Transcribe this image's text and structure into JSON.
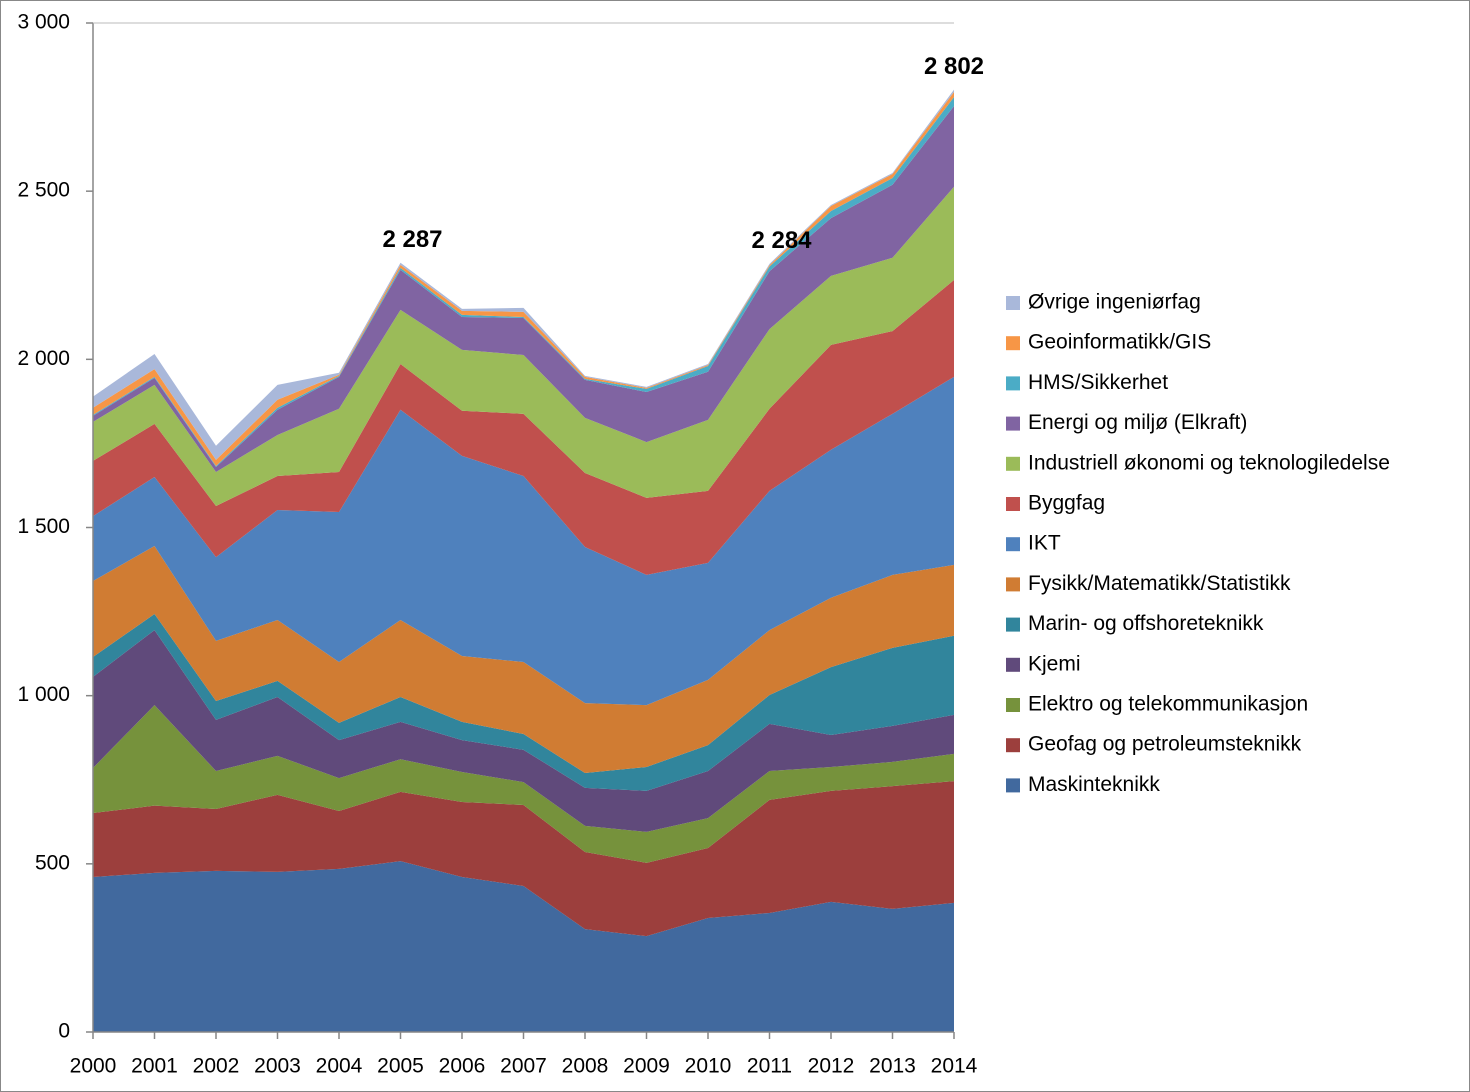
{
  "chart_data": {
    "type": "stacked-area",
    "categories": [
      "2000",
      "2001",
      "2002",
      "2003",
      "2004",
      "2005",
      "2006",
      "2007",
      "2008",
      "2009",
      "2010",
      "2011",
      "2012",
      "2013",
      "2014"
    ],
    "series": [
      {
        "name": "Maskinteknikk",
        "color": "#41699e",
        "values": [
          461,
          473,
          479,
          476,
          485,
          508,
          461,
          434,
          306,
          285,
          339,
          354,
          387,
          366,
          384
        ]
      },
      {
        "name": "Geofag og petroleumsteknikk",
        "color": "#9c3f3d",
        "values": [
          190,
          200,
          184,
          229,
          172,
          206,
          223,
          241,
          229,
          218,
          208,
          336,
          330,
          365,
          362
        ]
      },
      {
        "name": "Elektro og telekommunikasjon",
        "color": "#76923c",
        "values": [
          134,
          299,
          113,
          116,
          98,
          97,
          89,
          68,
          78,
          92,
          89,
          86,
          71,
          72,
          81
        ]
      },
      {
        "name": "Kjemi",
        "color": "#604a7b",
        "values": [
          271,
          223,
          152,
          175,
          113,
          111,
          95,
          96,
          113,
          122,
          140,
          140,
          95,
          107,
          116
        ]
      },
      {
        "name": "Marin- og offshoreteknikk",
        "color": "#31859c",
        "values": [
          59,
          48,
          56,
          48,
          51,
          74,
          54,
          47,
          44,
          71,
          77,
          86,
          202,
          232,
          235
        ]
      },
      {
        "name": "Fysikk/Matematikk/Statistikk",
        "color": "#d07c33",
        "values": [
          226,
          202,
          179,
          181,
          181,
          229,
          196,
          214,
          208,
          184,
          194,
          193,
          206,
          217,
          211
        ]
      },
      {
        "name": "IKT",
        "color": "#4f81bd",
        "values": [
          193,
          205,
          249,
          327,
          446,
          625,
          595,
          553,
          464,
          387,
          348,
          414,
          440,
          479,
          559
        ]
      },
      {
        "name": "Byggfag",
        "color": "#c0504d",
        "values": [
          164,
          158,
          152,
          101,
          119,
          136,
          134,
          185,
          220,
          229,
          214,
          244,
          312,
          246,
          288
        ]
      },
      {
        "name": "Industriell økonomi og teknologiledelse",
        "color": "#9bbb59",
        "values": [
          116,
          116,
          101,
          122,
          188,
          161,
          181,
          175,
          164,
          166,
          211,
          237,
          205,
          218,
          277
        ]
      },
      {
        "name": "Energi og miljø (Elkraft)",
        "color": "#8064a2",
        "values": [
          18,
          21,
          15,
          75,
          95,
          119,
          98,
          110,
          113,
          149,
          143,
          172,
          172,
          217,
          240
        ]
      },
      {
        "name": "HMS/Sikkerhet",
        "color": "#4bacc6",
        "values": [
          3,
          3,
          3,
          6,
          3,
          6,
          6,
          3,
          3,
          9,
          17,
          14,
          21,
          20,
          27
        ]
      },
      {
        "name": "Geoinformatikk/GIS",
        "color": "#f79646",
        "values": [
          21,
          23,
          18,
          24,
          3,
          9,
          12,
          15,
          6,
          3,
          3,
          4,
          15,
          12,
          15
        ]
      },
      {
        "name": "Øvrige ingeniørfag",
        "color": "#a9b8da",
        "values": [
          33,
          45,
          42,
          44,
          6,
          6,
          6,
          12,
          3,
          3,
          3,
          4,
          3,
          3,
          7
        ]
      }
    ],
    "ylim": [
      0,
      3000
    ],
    "yticks": [
      0,
      500,
      {
        "value": 1000,
        "label": "1 000"
      },
      {
        "value": 1500,
        "label": "1 500"
      },
      {
        "value": 2000,
        "label": "2 000"
      },
      {
        "value": 2500,
        "label": "2 500"
      },
      {
        "value": 3000,
        "label": "3 000"
      }
    ],
    "annotations": [
      {
        "label": "2 287",
        "value": 2287,
        "x": "2005"
      },
      {
        "label": "2 284",
        "value": 2284,
        "x": "2011"
      },
      {
        "label": "2 802",
        "value": 2802,
        "x": "2014"
      }
    ],
    "legend": "right"
  }
}
